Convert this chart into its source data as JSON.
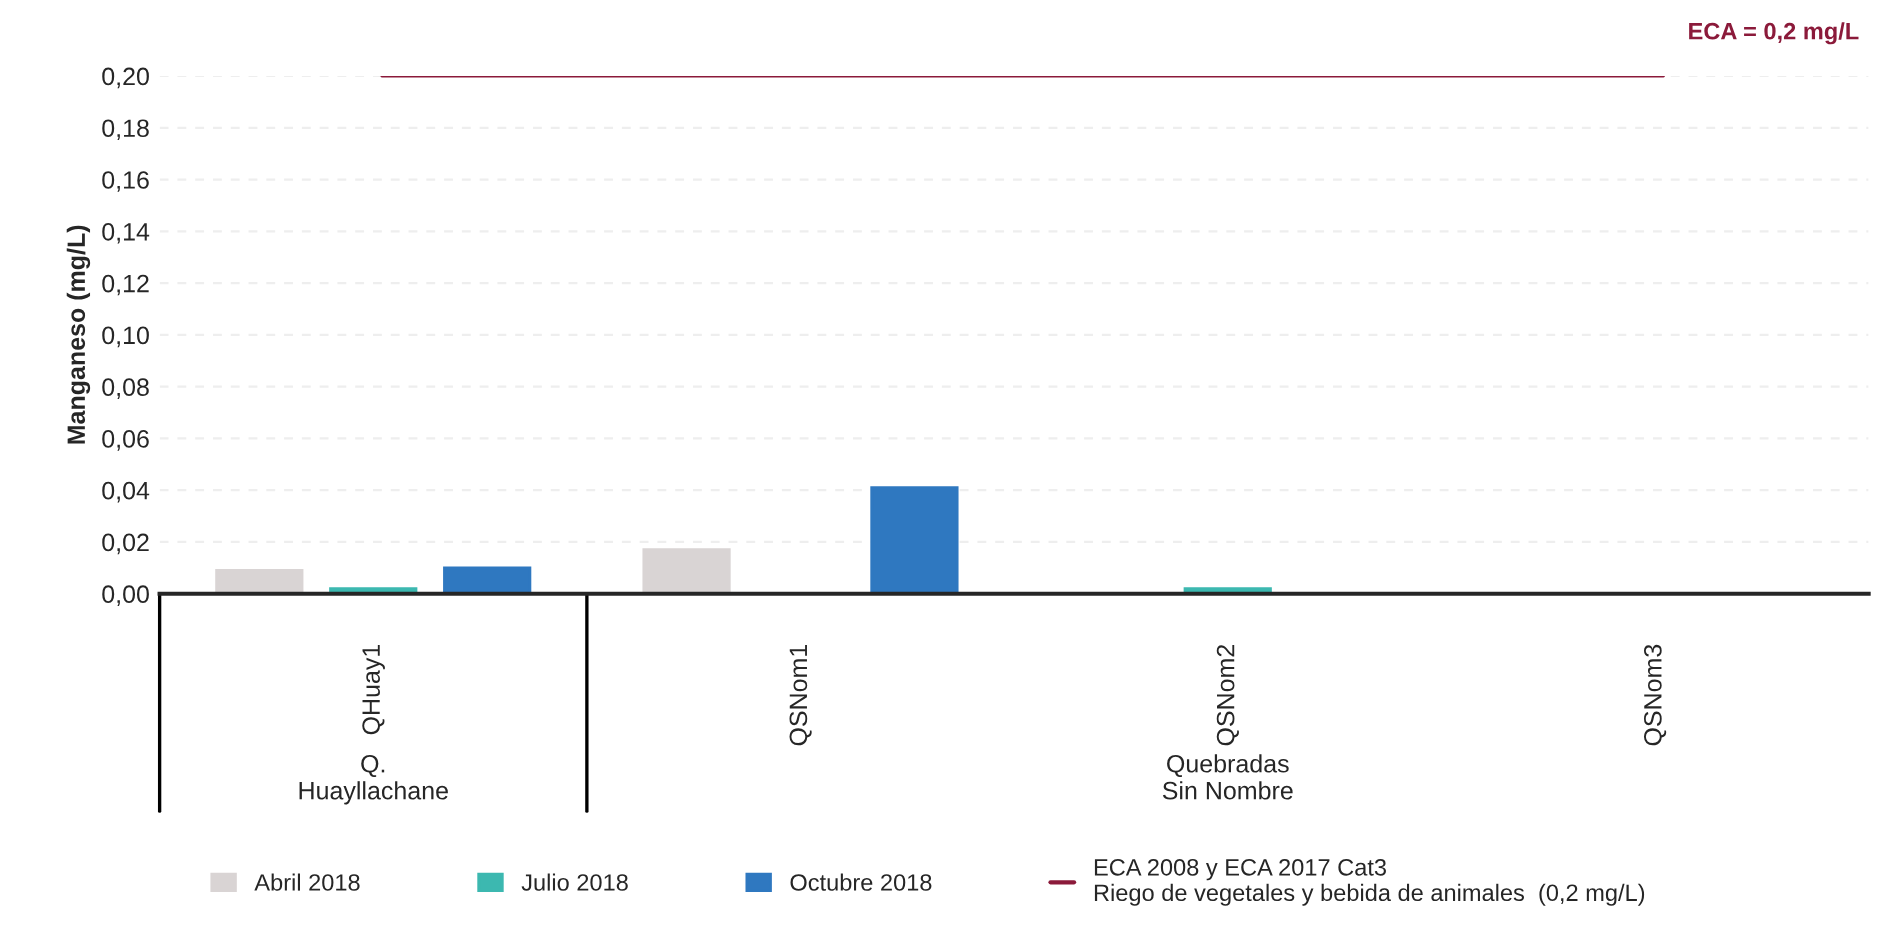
{
  "chart_data": {
    "type": "bar",
    "ylabel": "Manganeso (mg/L)",
    "categories": [
      "QHuay1",
      "QSNom1",
      "QSNom2",
      "QSNom3"
    ],
    "series": [
      {
        "name": "Abril 2018",
        "color": "#d9d4d4",
        "values": [
          0.009,
          0.017,
          0,
          0
        ]
      },
      {
        "name": "Julio 2018",
        "color": "#3cb8b0",
        "values": [
          0.002,
          0,
          0.002,
          0
        ]
      },
      {
        "name": "Octubre 2018",
        "color": "#2f78c0",
        "values": [
          0.01,
          0.041,
          0,
          0
        ]
      }
    ],
    "ylim": [
      0,
      0.2
    ],
    "yticks": [
      {
        "value": 0,
        "label": "0,00"
      },
      {
        "value": 0.02,
        "label": "0,02"
      },
      {
        "value": 0.04,
        "label": "0,04"
      },
      {
        "value": 0.06,
        "label": "0,06"
      },
      {
        "value": 0.08,
        "label": "0,08"
      },
      {
        "value": 0.1,
        "label": "0,10"
      },
      {
        "value": 0.12,
        "label": "0,12"
      },
      {
        "value": 0.14,
        "label": "0,14"
      },
      {
        "value": 0.16,
        "label": "0,16"
      },
      {
        "value": 0.18,
        "label": "0,18"
      },
      {
        "value": 0.2,
        "label": "0,20"
      }
    ],
    "ref_lines": [
      {
        "axis": "y",
        "value": 0.2,
        "label": "ECA 2008 y ECA 2017 Cat3\nRiego de vegetales y bebida de animales  (0,2 mg/L)",
        "color": "#8b1a3a"
      }
    ],
    "annotations": [
      "ECA = 0,2 mg/L",
      "Q.\nHuayllachane",
      "Quebradas\nSin Nombre"
    ],
    "grid": "y",
    "legend": "bottom"
  }
}
